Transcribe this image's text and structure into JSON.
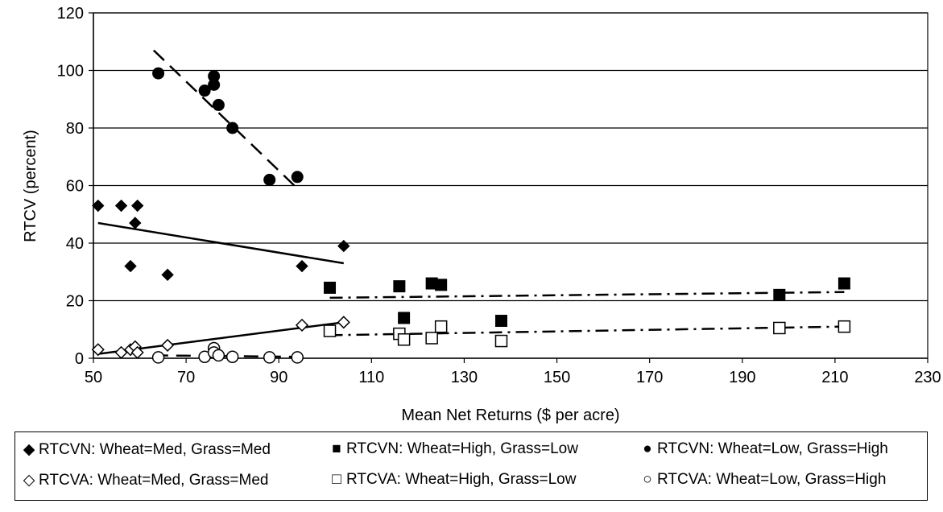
{
  "chart_data": {
    "type": "scatter",
    "xlabel": "Mean Net Returns ($ per acre)",
    "ylabel": "RTCV (percent)",
    "xlim": [
      50,
      230
    ],
    "ylim": [
      0,
      120
    ],
    "x_ticks": [
      "50",
      "70",
      "90",
      "110",
      "130",
      "150",
      "170",
      "190",
      "210",
      "230"
    ],
    "y_ticks": [
      "0",
      "20",
      "40",
      "60",
      "80",
      "100",
      "120"
    ],
    "grid": "horizontal",
    "legend_position": "bottom",
    "series": [
      {
        "name": "RTCVN: Wheat=Med, Grass=Med",
        "marker": "diamond-filled",
        "points": [
          [
            51,
            53
          ],
          [
            56,
            53
          ],
          [
            58,
            32
          ],
          [
            59,
            47
          ],
          [
            59.5,
            53
          ],
          [
            66,
            29
          ],
          [
            95,
            32
          ],
          [
            104,
            39
          ]
        ],
        "trendline": {
          "style": "solid",
          "x": [
            51,
            104
          ],
          "y": [
            47,
            33
          ]
        }
      },
      {
        "name": "RTCVN: Wheat=High, Grass=Low",
        "marker": "square-filled",
        "points": [
          [
            101,
            24.5
          ],
          [
            116,
            25
          ],
          [
            117,
            14
          ],
          [
            123,
            26
          ],
          [
            125,
            25.5
          ],
          [
            138,
            13
          ],
          [
            198,
            22
          ],
          [
            212,
            26
          ]
        ],
        "trendline": {
          "style": "dash-dot",
          "x": [
            101,
            212
          ],
          "y": [
            21,
            23
          ]
        }
      },
      {
        "name": "RTCVN: Wheat=Low, Grass=High",
        "marker": "circle-filled",
        "points": [
          [
            64,
            99
          ],
          [
            74,
            93
          ],
          [
            76,
            98
          ],
          [
            76,
            95
          ],
          [
            77,
            88
          ],
          [
            80,
            80
          ],
          [
            88,
            62
          ],
          [
            94,
            63
          ]
        ],
        "trendline": {
          "style": "dashed",
          "x": [
            63,
            94
          ],
          "y": [
            107,
            59
          ]
        }
      },
      {
        "name": "RTCVA: Wheat=Med, Grass=Med",
        "marker": "diamond-open",
        "points": [
          [
            51,
            3
          ],
          [
            56,
            2
          ],
          [
            58,
            3
          ],
          [
            59,
            4
          ],
          [
            59.5,
            2
          ],
          [
            66,
            4.5
          ],
          [
            95,
            11.5
          ],
          [
            104,
            12.5
          ]
        ],
        "trendline": {
          "style": "solid",
          "x": [
            51,
            104
          ],
          "y": [
            1.5,
            12.5
          ]
        }
      },
      {
        "name": "RTCVA: Wheat=High, Grass=Low",
        "marker": "square-open",
        "points": [
          [
            101,
            9.5
          ],
          [
            116,
            8.5
          ],
          [
            117,
            6.5
          ],
          [
            123,
            7
          ],
          [
            125,
            11
          ],
          [
            138,
            6
          ],
          [
            198,
            10.5
          ],
          [
            212,
            11
          ]
        ],
        "trendline": {
          "style": "dash-dot",
          "x": [
            101,
            212
          ],
          "y": [
            8,
            11
          ]
        }
      },
      {
        "name": "RTCVA: Wheat=Low, Grass=High",
        "marker": "circle-open",
        "points": [
          [
            64,
            0.3
          ],
          [
            74,
            0.5
          ],
          [
            76,
            3.5
          ],
          [
            76,
            2
          ],
          [
            77,
            1
          ],
          [
            80,
            0.5
          ],
          [
            88,
            0.3
          ],
          [
            94,
            0.3
          ]
        ],
        "trendline": {
          "style": "dashed",
          "x": [
            63,
            94
          ],
          "y": [
            1,
            0.5
          ]
        }
      }
    ]
  },
  "legend": {
    "items": [
      {
        "symbol": "◆",
        "label": "RTCVN: Wheat=Med, Grass=Med"
      },
      {
        "symbol": "■",
        "label": "RTCVN: Wheat=High, Grass=Low"
      },
      {
        "symbol": "●",
        "label": "RTCVN: Wheat=Low, Grass=High"
      },
      {
        "symbol": "◇",
        "label": "RTCVA: Wheat=Med, Grass=Med"
      },
      {
        "symbol": "□",
        "label": "RTCVA: Wheat=High, Grass=Low"
      },
      {
        "symbol": "○",
        "label": "RTCVA: Wheat=Low, Grass=High"
      }
    ]
  }
}
